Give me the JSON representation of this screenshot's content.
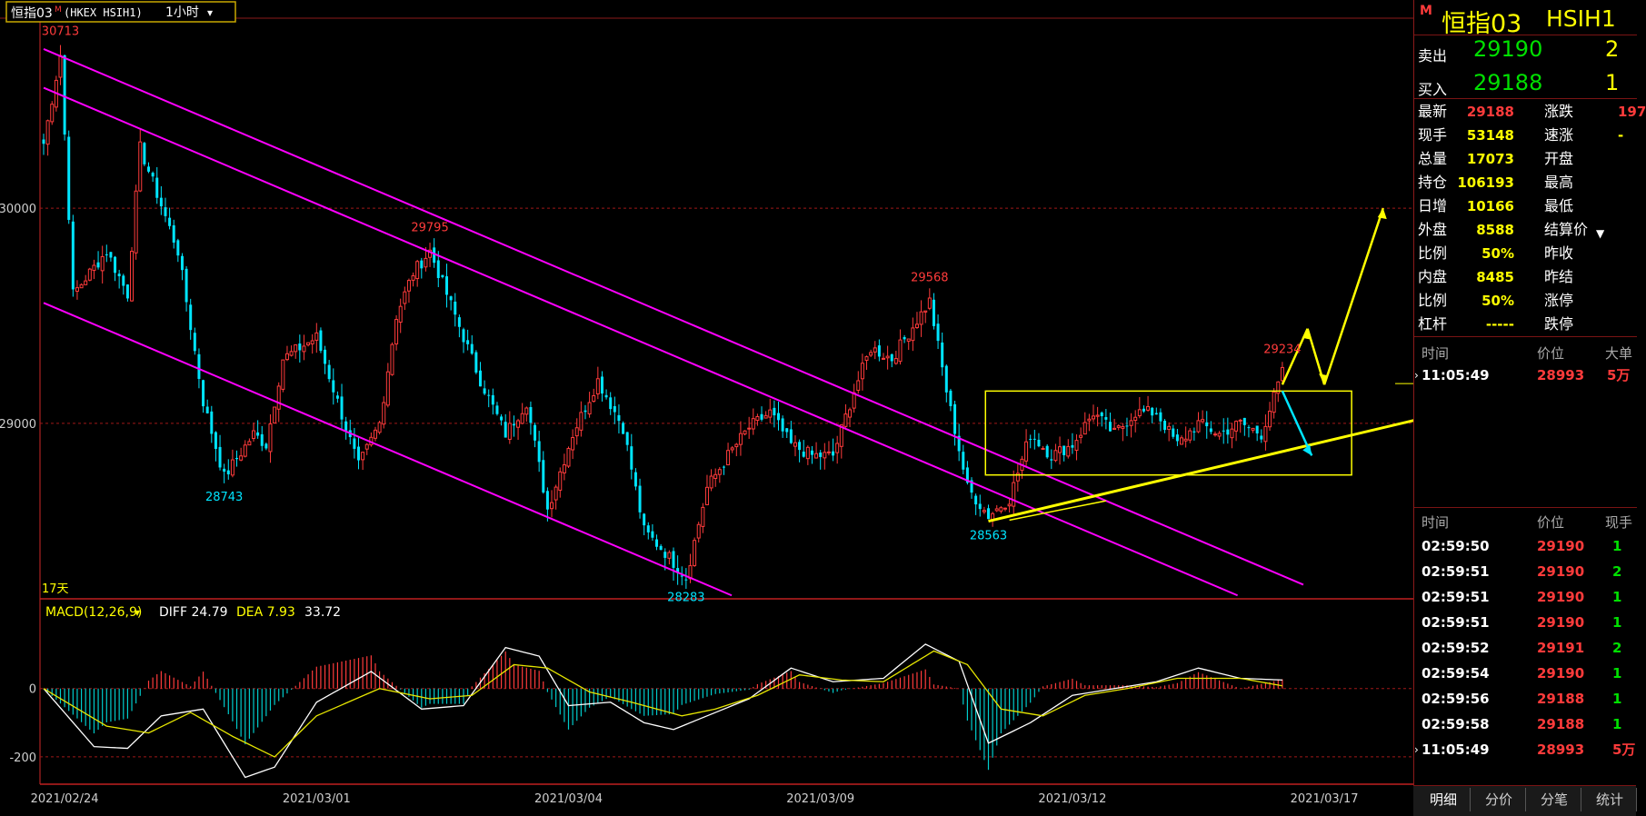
{
  "header": {
    "symbol_label": "恒指03",
    "flag": "M",
    "exchange": "(HKEX HSIH1)",
    "period": "1小时"
  },
  "day_count": "17天",
  "chart_data": [
    {
      "type": "candlestick",
      "title": "",
      "ylim": [
        28180,
        30820
      ],
      "y_ticks": [
        30000,
        29000
      ],
      "x_ticks": [
        "2021/02/24",
        "2021/03/01",
        "2021/03/04",
        "2021/03/09",
        "2021/03/12",
        "2021/03/17"
      ],
      "annotations": [
        {
          "text": "30713",
          "kind": "high"
        },
        {
          "text": "29795",
          "kind": "high"
        },
        {
          "text": "29568",
          "kind": "high"
        },
        {
          "text": "29234",
          "kind": "high"
        },
        {
          "text": "28743",
          "kind": "low"
        },
        {
          "text": "28283",
          "kind": "low"
        },
        {
          "text": "28563",
          "kind": "low"
        }
      ],
      "series": [
        {
          "name": "",
          "waypoints": [
            [
              0,
              30300
            ],
            [
              4,
              30713
            ],
            [
              7,
              29600
            ],
            [
              15,
              29800
            ],
            [
              20,
              29600
            ],
            [
              23,
              30280
            ],
            [
              32,
              29800
            ],
            [
              38,
              29100
            ],
            [
              43,
              28750
            ],
            [
              50,
              28950
            ],
            [
              53,
              28900
            ],
            [
              57,
              29300
            ],
            [
              65,
              29400
            ],
            [
              70,
              29100
            ],
            [
              75,
              28800
            ],
            [
              80,
              29000
            ],
            [
              84,
              29500
            ],
            [
              88,
              29700
            ],
            [
              92,
              29800
            ],
            [
              97,
              29550
            ],
            [
              104,
              29200
            ],
            [
              110,
              28950
            ],
            [
              115,
              29100
            ],
            [
              120,
              28600
            ],
            [
              126,
              28950
            ],
            [
              132,
              29200
            ],
            [
              138,
              28980
            ],
            [
              143,
              28500
            ],
            [
              148,
              28400
            ],
            [
              153,
              28283
            ],
            [
              158,
              28700
            ],
            [
              163,
              28850
            ],
            [
              168,
              28980
            ],
            [
              173,
              29050
            ],
            [
              178,
              28900
            ],
            [
              183,
              28850
            ],
            [
              188,
              28850
            ],
            [
              193,
              29150
            ],
            [
              197,
              29350
            ],
            [
              202,
              29300
            ],
            [
              207,
              29450
            ],
            [
              211,
              29568
            ],
            [
              215,
              29150
            ],
            [
              220,
              28700
            ],
            [
              225,
              28570
            ],
            [
              230,
              28650
            ],
            [
              235,
              28950
            ],
            [
              240,
              28850
            ],
            [
              245,
              28900
            ],
            [
              250,
              29050
            ],
            [
              255,
              28950
            ],
            [
              260,
              29050
            ],
            [
              265,
              29050
            ],
            [
              270,
              28900
            ],
            [
              275,
              29000
            ],
            [
              280,
              28950
            ],
            [
              285,
              29000
            ],
            [
              290,
              28950
            ],
            [
              295,
              29234
            ]
          ]
        }
      ],
      "overlays": [
        {
          "name": "channel",
          "color": "#ff00ff"
        },
        {
          "name": "range-box",
          "color": "#ffff00"
        },
        {
          "name": "support-trend",
          "color": "#ffff00"
        },
        {
          "name": "forecast-up",
          "color": "#ffff00"
        },
        {
          "name": "forecast-down",
          "color": "#00e5ff"
        }
      ]
    },
    {
      "type": "macd",
      "label": "MACD(12,26,9)",
      "diff_label": "DIFF 24.79",
      "dea_label": "DEA 7.93",
      "macd_value": "33.72",
      "ylim": [
        -280,
        260
      ],
      "y_ticks": [
        0,
        -200
      ],
      "diff_waypoints": [
        [
          0,
          0
        ],
        [
          12,
          -170
        ],
        [
          20,
          -175
        ],
        [
          28,
          -80
        ],
        [
          38,
          -60
        ],
        [
          48,
          -260
        ],
        [
          55,
          -230
        ],
        [
          65,
          -40
        ],
        [
          78,
          50
        ],
        [
          90,
          -60
        ],
        [
          100,
          -50
        ],
        [
          110,
          120
        ],
        [
          118,
          95
        ],
        [
          125,
          -50
        ],
        [
          135,
          -40
        ],
        [
          143,
          -100
        ],
        [
          150,
          -120
        ],
        [
          158,
          -80
        ],
        [
          168,
          -30
        ],
        [
          178,
          60
        ],
        [
          188,
          20
        ],
        [
          200,
          30
        ],
        [
          210,
          130
        ],
        [
          218,
          80
        ],
        [
          225,
          -160
        ],
        [
          235,
          -100
        ],
        [
          245,
          -20
        ],
        [
          255,
          0
        ],
        [
          265,
          20
        ],
        [
          275,
          60
        ],
        [
          285,
          30
        ],
        [
          295,
          25
        ]
      ],
      "dea_waypoints": [
        [
          0,
          0
        ],
        [
          15,
          -110
        ],
        [
          25,
          -130
        ],
        [
          35,
          -70
        ],
        [
          45,
          -140
        ],
        [
          55,
          -200
        ],
        [
          65,
          -80
        ],
        [
          80,
          0
        ],
        [
          92,
          -30
        ],
        [
          102,
          -20
        ],
        [
          112,
          70
        ],
        [
          120,
          60
        ],
        [
          130,
          -10
        ],
        [
          140,
          -40
        ],
        [
          152,
          -80
        ],
        [
          160,
          -60
        ],
        [
          170,
          -20
        ],
        [
          180,
          40
        ],
        [
          190,
          25
        ],
        [
          200,
          20
        ],
        [
          212,
          110
        ],
        [
          220,
          70
        ],
        [
          228,
          -60
        ],
        [
          238,
          -80
        ],
        [
          248,
          -20
        ],
        [
          258,
          0
        ],
        [
          270,
          30
        ],
        [
          285,
          30
        ],
        [
          295,
          8
        ]
      ]
    }
  ],
  "quote": {
    "title": "恒指03",
    "code": "HSIH1",
    "flag": "M",
    "sell_label": "卖出",
    "sell_price": "29190",
    "sell_vol": "2",
    "buy_label": "买入",
    "buy_price": "29188",
    "buy_vol": "1",
    "stats": [
      {
        "label": "最新",
        "value": "29188",
        "label2": "涨跌",
        "value2": "197",
        "color": "#ff3b3b",
        "color2": "#ff3b3b"
      },
      {
        "label": "现手",
        "value": "53148",
        "label2": "速涨",
        "value2": "-",
        "color": "#ffff00",
        "color2": "#ffff00"
      },
      {
        "label": "总量",
        "value": "17073",
        "label2": "开盘",
        "value2": "",
        "color": "#ffff00",
        "color2": "#ffff00"
      },
      {
        "label": "持仓",
        "value": "106193",
        "label2": "最高",
        "value2": "",
        "color": "#ffff00",
        "color2": "#ffff00"
      },
      {
        "label": "日增",
        "value": "10166",
        "label2": "最低",
        "value2": "",
        "color": "#ffff00",
        "color2": "#ffff00"
      },
      {
        "label": "外盘",
        "value": "8588",
        "label2": "结算价",
        "value2": "",
        "color": "#ffff00",
        "color2": "#ffff00"
      },
      {
        "label": "比例",
        "value": "50%",
        "label2": "昨收",
        "value2": "",
        "color": "#ffff00",
        "color2": "#ffff00"
      },
      {
        "label": "内盘",
        "value": "8485",
        "label2": "昨结",
        "value2": "",
        "color": "#ffff00",
        "color2": "#ffff00"
      },
      {
        "label": "比例",
        "value": "50%",
        "label2": "涨停",
        "value2": "",
        "color": "#ffff00",
        "color2": "#ffff00"
      },
      {
        "label": "杠杆",
        "value": "-----",
        "label2": "跌停",
        "value2": "",
        "color": "#ffff00",
        "color2": "#ffff00"
      }
    ],
    "big_header": {
      "time": "时间",
      "price": "价位",
      "vol": "大单"
    },
    "big_trades": [
      {
        "time": "11:05:49",
        "price": "28993",
        "vol": "5万"
      }
    ],
    "ticks_header": {
      "time": "时间",
      "price": "价位",
      "vol": "现手"
    },
    "ticks": [
      {
        "time": "02:59:50",
        "price": "29190",
        "vol": "1"
      },
      {
        "time": "02:59:51",
        "price": "29190",
        "vol": "2"
      },
      {
        "time": "02:59:51",
        "price": "29190",
        "vol": "1"
      },
      {
        "time": "02:59:51",
        "price": "29190",
        "vol": "1"
      },
      {
        "time": "02:59:52",
        "price": "29191",
        "vol": "2"
      },
      {
        "time": "02:59:54",
        "price": "29190",
        "vol": "1"
      },
      {
        "time": "02:59:56",
        "price": "29188",
        "vol": "1"
      },
      {
        "time": "02:59:58",
        "price": "29188",
        "vol": "1"
      },
      {
        "time": "11:05:49",
        "price": "28993",
        "vol": "5万"
      }
    ]
  },
  "tabs": [
    "明细",
    "分价",
    "分笔",
    "统计"
  ]
}
